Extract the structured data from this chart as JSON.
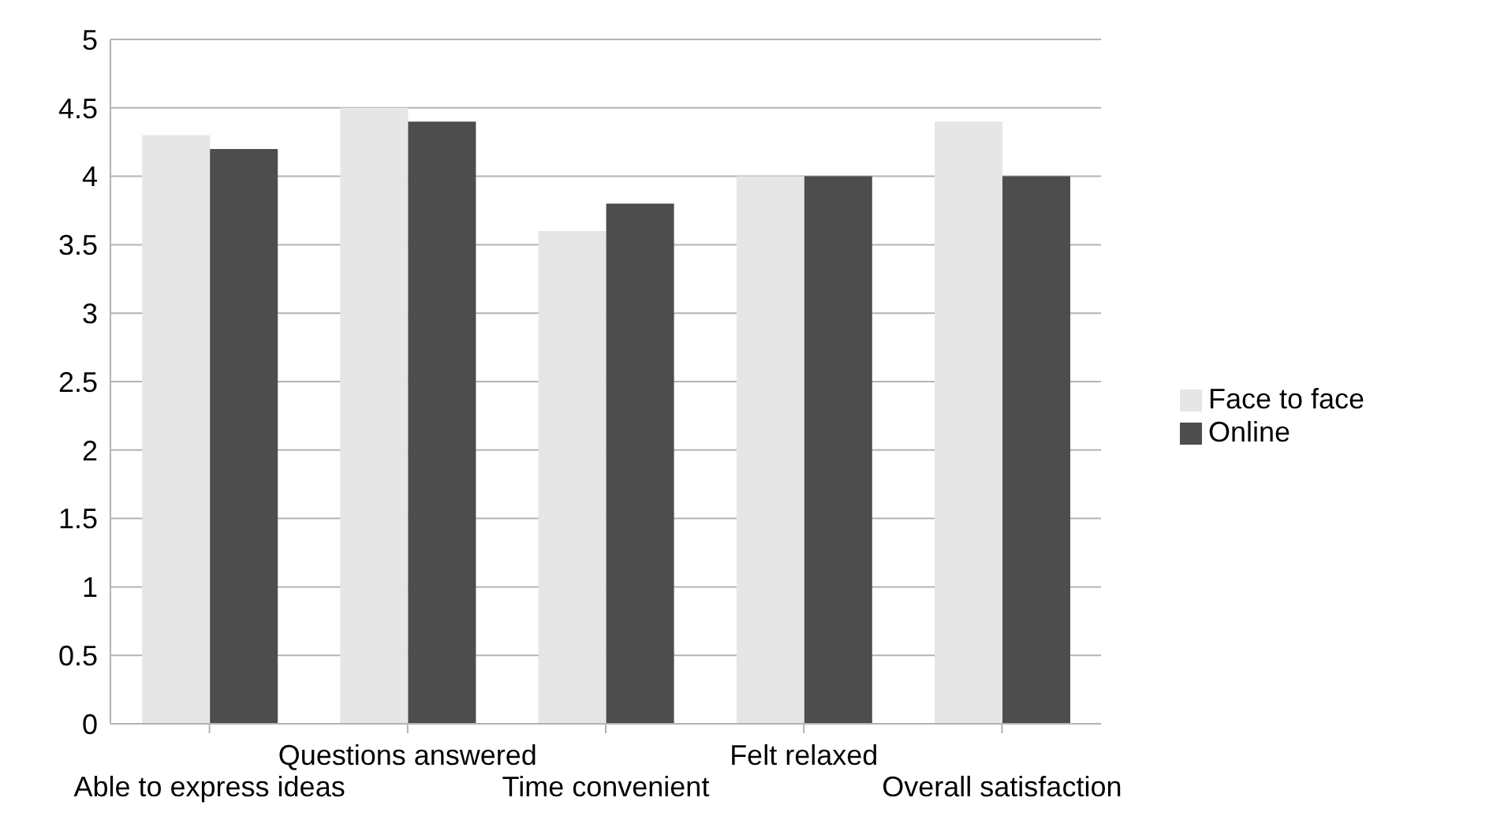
{
  "chart_data": {
    "type": "bar",
    "categories": [
      "Able to express ideas",
      "Questions answered",
      "Time convenient",
      "Felt relaxed",
      "Overall satisfaction"
    ],
    "series": [
      {
        "name": "Face to face",
        "color": "#e6e6e6",
        "values": [
          4.3,
          4.5,
          3.6,
          4.0,
          4.4
        ]
      },
      {
        "name": "Online",
        "color": "#4d4d4d",
        "values": [
          4.2,
          4.4,
          3.8,
          4.0,
          4.0
        ]
      }
    ],
    "ylim": [
      0,
      5
    ],
    "yticks": [
      0,
      0.5,
      1,
      1.5,
      2,
      2.5,
      3,
      3.5,
      4,
      4.5,
      5
    ],
    "grid": "y",
    "legend": "right"
  }
}
